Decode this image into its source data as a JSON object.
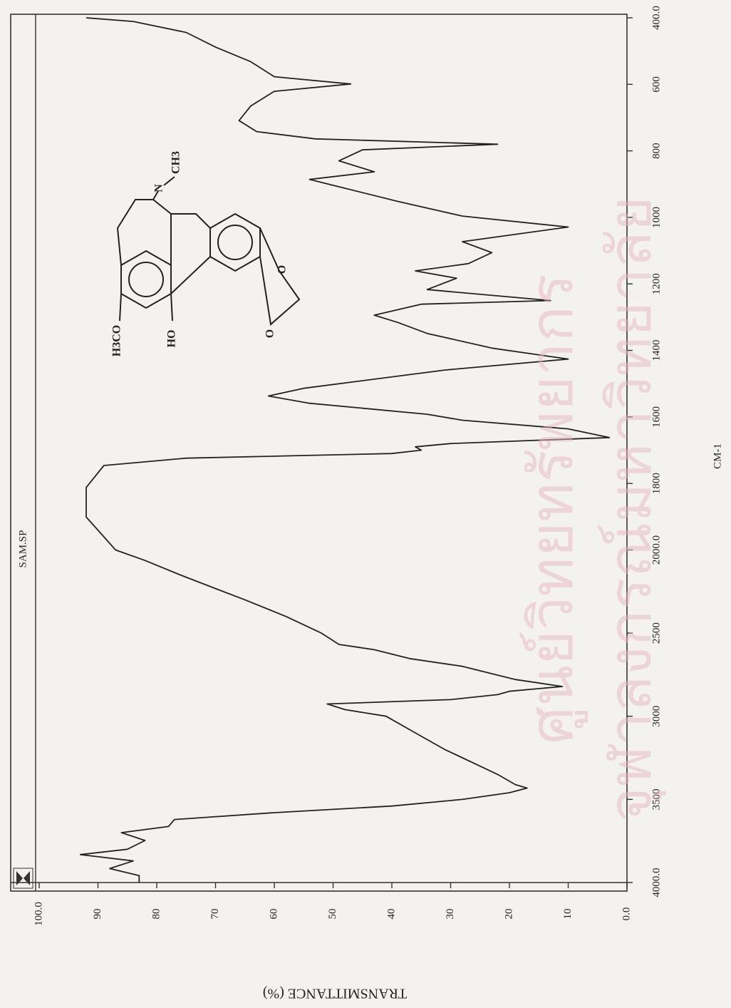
{
  "chart_data": {
    "type": "line",
    "x_label": "CM-1",
    "y_label": "TRANSMITTANCE (%)",
    "sample": "SAM.SP",
    "watermark": [
      "ศูนย์วิทยทรัพยากร",
      "จุฬาลงกรณ์มหาวิทยาลัย"
    ],
    "structure_labels": [
      "H3CO",
      "HO",
      "N",
      "CH3",
      "O",
      "O"
    ],
    "color": "#222222",
    "x_scale_change": 2000,
    "x": [
      4000,
      3958,
      3916,
      3870,
      3832,
      3800,
      3747,
      3700,
      3663,
      3621,
      3580,
      3540,
      3500,
      3460,
      3432,
      3411,
      3350,
      3300,
      3250,
      3200,
      3100,
      3000,
      2960,
      2926,
      2900,
      2870,
      2850,
      2821,
      2779,
      2700,
      2653,
      2600,
      2568,
      2500,
      2400,
      2300,
      2232,
      2150,
      2063,
      2000,
      1901,
      1812,
      1746,
      1724,
      1710,
      1700,
      1690,
      1680,
      1662,
      1636,
      1610,
      1592,
      1559,
      1537,
      1514,
      1459,
      1426,
      1393,
      1349,
      1316,
      1294,
      1261,
      1250,
      1217,
      1183,
      1161,
      1139,
      1106,
      1073,
      1029,
      996,
      952,
      908,
      886,
      863,
      830,
      797,
      780,
      764,
      742,
      709,
      665,
      621,
      599,
      577,
      532,
      488,
      444,
      411,
      400
    ],
    "values": [
      83,
      83,
      88,
      84,
      93,
      85,
      82,
      86,
      78,
      77,
      60,
      40,
      28,
      20,
      17,
      19,
      22,
      25,
      28,
      31,
      36,
      41,
      48,
      51,
      30,
      22,
      20,
      11,
      19,
      28,
      37,
      43,
      49,
      52,
      58,
      65,
      70,
      76,
      82,
      87,
      92,
      92,
      89,
      75,
      40,
      35,
      36,
      30,
      3,
      10,
      28,
      34,
      54,
      61,
      55,
      31,
      10,
      23,
      34,
      39,
      43,
      35,
      13,
      34,
      29,
      36,
      27,
      23,
      28,
      10,
      28,
      39,
      49,
      54,
      43,
      49,
      45,
      22,
      53,
      63,
      66,
      64,
      60,
      47,
      60,
      64,
      70,
      75,
      84,
      92
    ],
    "xlim": [
      4000,
      400
    ],
    "xticks": [
      {
        "value": 4000,
        "label": "4000.0"
      },
      3500,
      3000,
      2500,
      {
        "value": 2000,
        "label": "2000.0"
      },
      1800,
      1600,
      1400,
      1200,
      1000,
      800,
      600,
      {
        "value": 400,
        "label": "400.0"
      }
    ],
    "ylim": [
      0,
      100
    ],
    "yticks": [
      {
        "value": 0,
        "label": "0.0"
      },
      10,
      20,
      30,
      40,
      50,
      60,
      70,
      80,
      90,
      {
        "value": 100,
        "label": "100.0"
      }
    ]
  }
}
